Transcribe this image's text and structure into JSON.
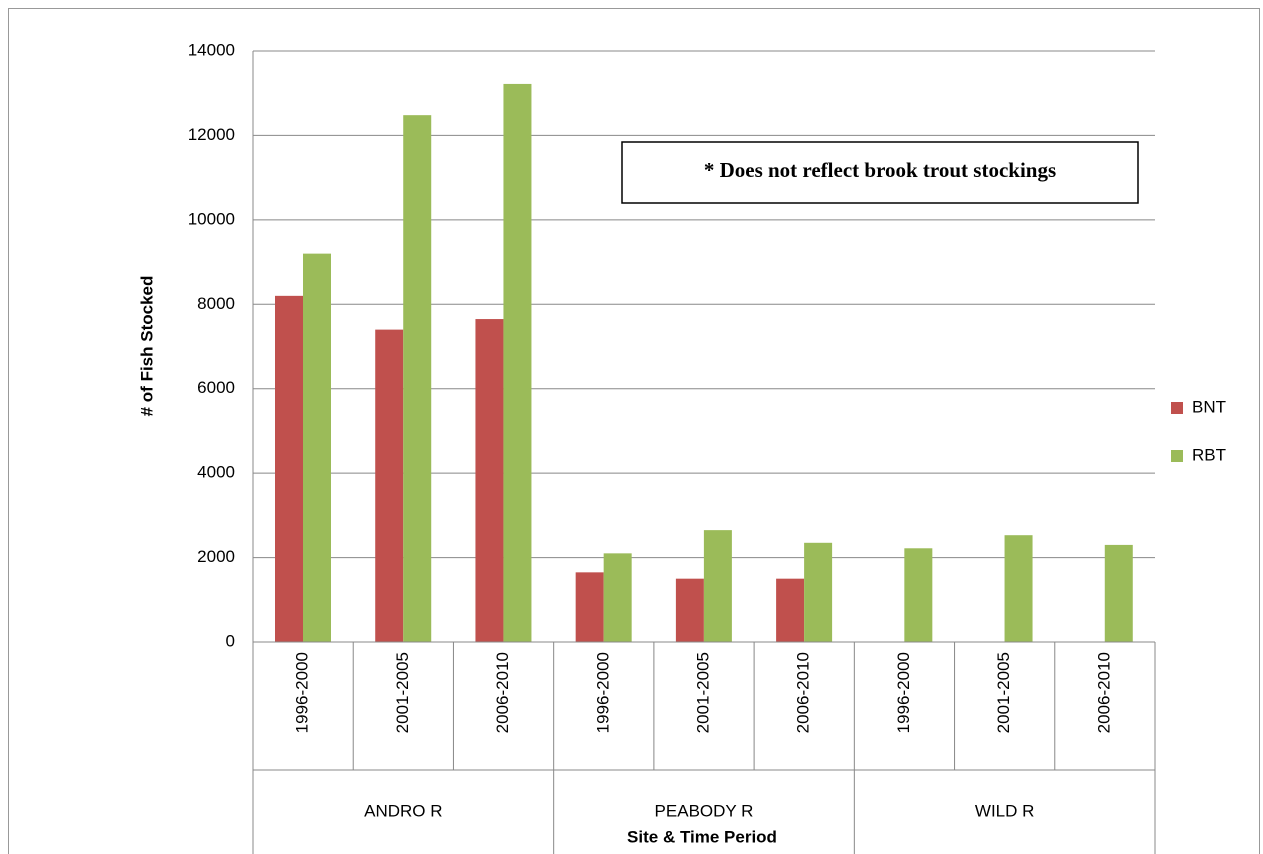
{
  "chart_data": {
    "type": "bar",
    "categories": [
      "1996-2000",
      "2001-2005",
      "2006-2010",
      "1996-2000",
      "2001-2005",
      "2006-2010",
      "1996-2000",
      "2001-2005",
      "2006-2010"
    ],
    "groups": [
      "ANDRO R",
      "PEABODY R",
      "WILD R"
    ],
    "series": [
      {
        "name": "BNT",
        "color": "#c0504d",
        "values": [
          8200,
          7400,
          7650,
          1650,
          1500,
          1500,
          null,
          null,
          null
        ]
      },
      {
        "name": "RBT",
        "color": "#9bbb59",
        "values": [
          9200,
          12480,
          13220,
          2100,
          2650,
          2350,
          2220,
          2530,
          2300
        ]
      }
    ],
    "ylabel": "# of Fish Stocked",
    "xlabel": "Site & Time Period",
    "annotation": "* Does not reflect brook trout stockings",
    "ylim": [
      0,
      14000
    ],
    "yticks": [
      0,
      2000,
      4000,
      6000,
      8000,
      10000,
      12000,
      14000
    ],
    "grid": true,
    "legend": "right"
  }
}
